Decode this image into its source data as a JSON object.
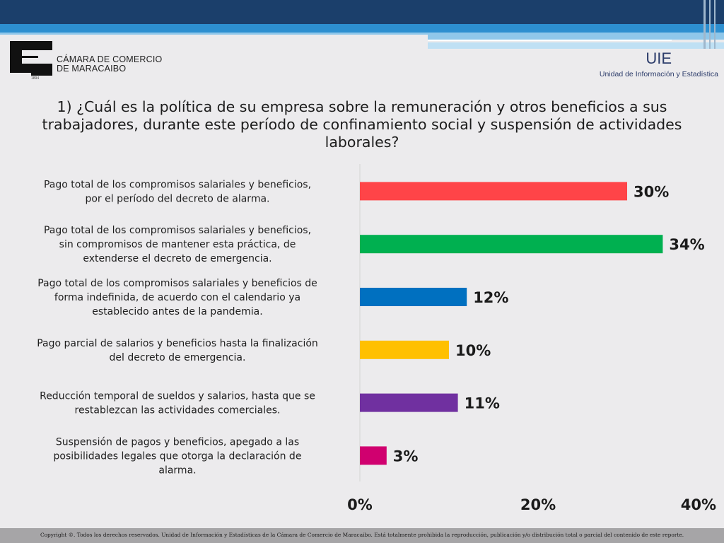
{
  "header": {
    "org_name_line1": "CÁMARA DE COMERCIO",
    "org_name_line2": "DE MARACAIBO",
    "org_year": "1894",
    "unit_acronym": "UIE",
    "unit_name": "Unidad de Información y Estadística",
    "colors": {
      "banner_dark": "#1b3f6b",
      "banner_light": "#2d8fd0"
    }
  },
  "question": {
    "line1": "1) ¿Cuál es la política de su empresa sobre la remuneración y otros beneficios a sus",
    "line2": "trabajadores, durante este período de confinamiento social y suspensión de actividades",
    "line3": "laborales?"
  },
  "chart_data": {
    "type": "bar",
    "orientation": "horizontal",
    "categories": [
      [
        "Pago total de los compromisos salariales y beneficios,",
        "por el período del decreto de alarma."
      ],
      [
        "Pago total de los compromisos salariales y beneficios,",
        "sin compromisos de mantener esta práctica, de",
        "extenderse el decreto de emergencia."
      ],
      [
        "Pago total de los compromisos salariales y beneficios de",
        "forma indefinida, de acuerdo con el calendario ya",
        "establecido antes de la pandemia."
      ],
      [
        "Pago parcial de salarios y beneficios hasta la finalización",
        "del decreto de emergencia."
      ],
      [
        "Reducción temporal de sueldos y salarios, hasta que se",
        "restablezcan las actividades comerciales."
      ],
      [
        "Suspensión de pagos y beneficios, apegado a las",
        "posibilidades legales que otorga la declaración de",
        "alarma."
      ]
    ],
    "values": [
      30,
      34,
      12,
      10,
      11,
      3
    ],
    "value_labels": [
      "30%",
      "34%",
      "12%",
      "10%",
      "11%",
      "3%"
    ],
    "colors": [
      "#ff4448",
      "#00b050",
      "#0070c0",
      "#ffc000",
      "#7030a0",
      "#d0006f"
    ],
    "xlim": [
      0,
      40
    ],
    "x_ticks": [
      0,
      20,
      40
    ],
    "x_tick_labels": [
      "0%",
      "20%",
      "40%"
    ],
    "grid": false,
    "legend": "none"
  },
  "footer": {
    "text": "Copyright ©. Todos los derechos reservados. Unidad de Información y Estadísticas de la Cámara de Comercio de Maracaibo. Está totalmente prohibida la reproducción, publicación y/o distribución total o parcial del contenido de este reporte."
  }
}
